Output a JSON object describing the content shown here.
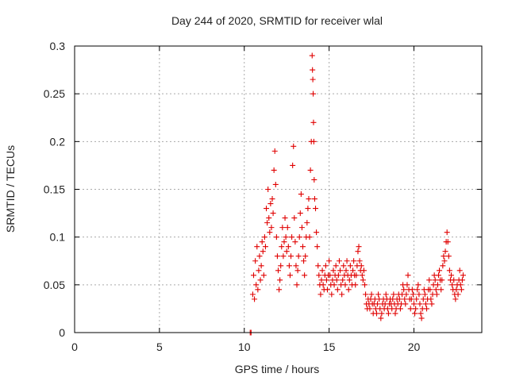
{
  "chart_data": {
    "type": "scatter",
    "title": "Day 244 of 2020, SRMTID for receiver wlal",
    "xlabel": "GPS time / hours",
    "ylabel": "SRMTID / TECUs",
    "xlim": [
      0,
      24
    ],
    "ylim": [
      0,
      0.3
    ],
    "xticks": [
      0,
      5,
      10,
      15,
      20
    ],
    "yticks": [
      0,
      0.05,
      0.1,
      0.15,
      0.2,
      0.25,
      0.3
    ],
    "xtick_labels": [
      "0",
      "5",
      "10",
      "15",
      "20"
    ],
    "ytick_labels": [
      "0",
      "0.05",
      "0.1",
      "0.15",
      "0.2",
      "0.25",
      "0.3"
    ],
    "grid": true,
    "marker": "+",
    "color": "#e00000",
    "points": [
      [
        10.35,
        0.0
      ],
      [
        10.4,
        0.0
      ],
      [
        10.5,
        0.04
      ],
      [
        10.55,
        0.06
      ],
      [
        10.6,
        0.035
      ],
      [
        10.65,
        0.075
      ],
      [
        10.7,
        0.05
      ],
      [
        10.75,
        0.09
      ],
      [
        10.8,
        0.045
      ],
      [
        10.85,
        0.065
      ],
      [
        10.9,
        0.08
      ],
      [
        10.95,
        0.055
      ],
      [
        11.0,
        0.07
      ],
      [
        11.05,
        0.095
      ],
      [
        11.1,
        0.085
      ],
      [
        11.15,
        0.06
      ],
      [
        11.2,
        0.1
      ],
      [
        11.25,
        0.09
      ],
      [
        11.3,
        0.13
      ],
      [
        11.35,
        0.115
      ],
      [
        11.4,
        0.15
      ],
      [
        11.45,
        0.12
      ],
      [
        11.5,
        0.105
      ],
      [
        11.55,
        0.135
      ],
      [
        11.6,
        0.11
      ],
      [
        11.65,
        0.14
      ],
      [
        11.7,
        0.125
      ],
      [
        11.75,
        0.17
      ],
      [
        11.8,
        0.19
      ],
      [
        11.85,
        0.155
      ],
      [
        11.9,
        0.1
      ],
      [
        11.95,
        0.08
      ],
      [
        12.0,
        0.065
      ],
      [
        12.05,
        0.045
      ],
      [
        12.1,
        0.055
      ],
      [
        12.15,
        0.07
      ],
      [
        12.2,
        0.09
      ],
      [
        12.25,
        0.11
      ],
      [
        12.3,
        0.08
      ],
      [
        12.35,
        0.095
      ],
      [
        12.4,
        0.12
      ],
      [
        12.45,
        0.1
      ],
      [
        12.5,
        0.085
      ],
      [
        12.55,
        0.11
      ],
      [
        12.6,
        0.09
      ],
      [
        12.65,
        0.07
      ],
      [
        12.7,
        0.06
      ],
      [
        12.75,
        0.08
      ],
      [
        12.8,
        0.1
      ],
      [
        12.85,
        0.175
      ],
      [
        12.9,
        0.195
      ],
      [
        12.95,
        0.12
      ],
      [
        13.0,
        0.095
      ],
      [
        13.05,
        0.07
      ],
      [
        13.1,
        0.05
      ],
      [
        13.15,
        0.065
      ],
      [
        13.2,
        0.08
      ],
      [
        13.25,
        0.1
      ],
      [
        13.3,
        0.125
      ],
      [
        13.35,
        0.145
      ],
      [
        13.4,
        0.11
      ],
      [
        13.45,
        0.09
      ],
      [
        13.5,
        0.075
      ],
      [
        13.55,
        0.06
      ],
      [
        13.6,
        0.08
      ],
      [
        13.65,
        0.1
      ],
      [
        13.7,
        0.115
      ],
      [
        13.75,
        0.13
      ],
      [
        13.8,
        0.14
      ],
      [
        13.85,
        0.1
      ],
      [
        13.9,
        0.17
      ],
      [
        13.95,
        0.2
      ],
      [
        14.0,
        0.29
      ],
      [
        14.02,
        0.275
      ],
      [
        14.04,
        0.265
      ],
      [
        14.06,
        0.25
      ],
      [
        14.08,
        0.22
      ],
      [
        14.1,
        0.2
      ],
      [
        14.12,
        0.16
      ],
      [
        14.15,
        0.14
      ],
      [
        14.2,
        0.13
      ],
      [
        14.25,
        0.105
      ],
      [
        14.3,
        0.09
      ],
      [
        14.35,
        0.07
      ],
      [
        14.4,
        0.06
      ],
      [
        14.45,
        0.05
      ],
      [
        14.5,
        0.04
      ],
      [
        14.55,
        0.055
      ],
      [
        14.6,
        0.065
      ],
      [
        14.65,
        0.05
      ],
      [
        14.7,
        0.045
      ],
      [
        14.75,
        0.06
      ],
      [
        14.8,
        0.07
      ],
      [
        14.85,
        0.055
      ],
      [
        14.9,
        0.045
      ],
      [
        14.95,
        0.06
      ],
      [
        15.0,
        0.075
      ],
      [
        15.05,
        0.06
      ],
      [
        15.1,
        0.05
      ],
      [
        15.15,
        0.04
      ],
      [
        15.2,
        0.055
      ],
      [
        15.25,
        0.065
      ],
      [
        15.3,
        0.05
      ],
      [
        15.35,
        0.06
      ],
      [
        15.4,
        0.07
      ],
      [
        15.45,
        0.055
      ],
      [
        15.5,
        0.045
      ],
      [
        15.55,
        0.06
      ],
      [
        15.6,
        0.075
      ],
      [
        15.65,
        0.065
      ],
      [
        15.7,
        0.05
      ],
      [
        15.75,
        0.04
      ],
      [
        15.8,
        0.055
      ],
      [
        15.85,
        0.07
      ],
      [
        15.9,
        0.06
      ],
      [
        15.95,
        0.05
      ],
      [
        16.0,
        0.065
      ],
      [
        16.05,
        0.075
      ],
      [
        16.1,
        0.06
      ],
      [
        16.15,
        0.045
      ],
      [
        16.2,
        0.055
      ],
      [
        16.25,
        0.07
      ],
      [
        16.3,
        0.06
      ],
      [
        16.35,
        0.05
      ],
      [
        16.4,
        0.065
      ],
      [
        16.45,
        0.075
      ],
      [
        16.5,
        0.06
      ],
      [
        16.55,
        0.05
      ],
      [
        16.6,
        0.06
      ],
      [
        16.65,
        0.07
      ],
      [
        16.7,
        0.085
      ],
      [
        16.75,
        0.09
      ],
      [
        16.8,
        0.075
      ],
      [
        16.85,
        0.065
      ],
      [
        16.9,
        0.07
      ],
      [
        16.95,
        0.06
      ],
      [
        17.0,
        0.055
      ],
      [
        17.05,
        0.065
      ],
      [
        17.1,
        0.05
      ],
      [
        17.15,
        0.04
      ],
      [
        17.2,
        0.03
      ],
      [
        17.25,
        0.025
      ],
      [
        17.3,
        0.035
      ],
      [
        17.35,
        0.03
      ],
      [
        17.4,
        0.025
      ],
      [
        17.45,
        0.035
      ],
      [
        17.5,
        0.04
      ],
      [
        17.55,
        0.03
      ],
      [
        17.6,
        0.02
      ],
      [
        17.65,
        0.03
      ],
      [
        17.7,
        0.035
      ],
      [
        17.75,
        0.025
      ],
      [
        17.8,
        0.02
      ],
      [
        17.85,
        0.03
      ],
      [
        17.9,
        0.04
      ],
      [
        17.95,
        0.035
      ],
      [
        18.0,
        0.025
      ],
      [
        18.05,
        0.015
      ],
      [
        18.1,
        0.02
      ],
      [
        18.15,
        0.03
      ],
      [
        18.2,
        0.035
      ],
      [
        18.25,
        0.025
      ],
      [
        18.3,
        0.03
      ],
      [
        18.35,
        0.04
      ],
      [
        18.4,
        0.035
      ],
      [
        18.45,
        0.025
      ],
      [
        18.5,
        0.02
      ],
      [
        18.55,
        0.03
      ],
      [
        18.6,
        0.035
      ],
      [
        18.65,
        0.03
      ],
      [
        18.7,
        0.025
      ],
      [
        18.75,
        0.035
      ],
      [
        18.8,
        0.04
      ],
      [
        18.85,
        0.03
      ],
      [
        18.9,
        0.02
      ],
      [
        18.95,
        0.025
      ],
      [
        19.0,
        0.035
      ],
      [
        19.05,
        0.03
      ],
      [
        19.1,
        0.04
      ],
      [
        19.15,
        0.035
      ],
      [
        19.2,
        0.025
      ],
      [
        19.25,
        0.03
      ],
      [
        19.3,
        0.04
      ],
      [
        19.35,
        0.05
      ],
      [
        19.4,
        0.045
      ],
      [
        19.45,
        0.035
      ],
      [
        19.5,
        0.03
      ],
      [
        19.55,
        0.04
      ],
      [
        19.6,
        0.05
      ],
      [
        19.65,
        0.06
      ],
      [
        19.7,
        0.045
      ],
      [
        19.75,
        0.035
      ],
      [
        19.8,
        0.025
      ],
      [
        19.85,
        0.035
      ],
      [
        19.9,
        0.045
      ],
      [
        19.95,
        0.04
      ],
      [
        20.0,
        0.03
      ],
      [
        20.05,
        0.02
      ],
      [
        20.1,
        0.025
      ],
      [
        20.15,
        0.035
      ],
      [
        20.2,
        0.045
      ],
      [
        20.25,
        0.05
      ],
      [
        20.3,
        0.04
      ],
      [
        20.35,
        0.03
      ],
      [
        20.4,
        0.02
      ],
      [
        20.45,
        0.015
      ],
      [
        20.5,
        0.025
      ],
      [
        20.55,
        0.035
      ],
      [
        20.6,
        0.045
      ],
      [
        20.65,
        0.04
      ],
      [
        20.7,
        0.03
      ],
      [
        20.75,
        0.025
      ],
      [
        20.8,
        0.035
      ],
      [
        20.85,
        0.045
      ],
      [
        20.9,
        0.055
      ],
      [
        20.95,
        0.045
      ],
      [
        21.0,
        0.035
      ],
      [
        21.05,
        0.03
      ],
      [
        21.1,
        0.04
      ],
      [
        21.15,
        0.05
      ],
      [
        21.2,
        0.06
      ],
      [
        21.25,
        0.055
      ],
      [
        21.3,
        0.045
      ],
      [
        21.35,
        0.04
      ],
      [
        21.4,
        0.05
      ],
      [
        21.45,
        0.06
      ],
      [
        21.5,
        0.065
      ],
      [
        21.55,
        0.055
      ],
      [
        21.6,
        0.045
      ],
      [
        21.65,
        0.055
      ],
      [
        21.7,
        0.07
      ],
      [
        21.75,
        0.08
      ],
      [
        21.8,
        0.075
      ],
      [
        21.85,
        0.085
      ],
      [
        21.9,
        0.095
      ],
      [
        21.95,
        0.105
      ],
      [
        22.0,
        0.095
      ],
      [
        22.05,
        0.08
      ],
      [
        22.1,
        0.065
      ],
      [
        22.15,
        0.055
      ],
      [
        22.2,
        0.06
      ],
      [
        22.25,
        0.05
      ],
      [
        22.3,
        0.045
      ],
      [
        22.35,
        0.055
      ],
      [
        22.4,
        0.04
      ],
      [
        22.45,
        0.035
      ],
      [
        22.5,
        0.045
      ],
      [
        22.55,
        0.05
      ],
      [
        22.6,
        0.04
      ],
      [
        22.65,
        0.055
      ],
      [
        22.7,
        0.065
      ],
      [
        22.75,
        0.05
      ],
      [
        22.8,
        0.045
      ],
      [
        22.85,
        0.055
      ],
      [
        22.9,
        0.06
      ]
    ]
  }
}
